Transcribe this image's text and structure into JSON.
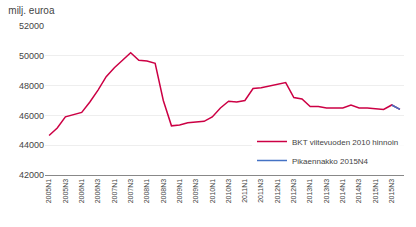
{
  "chart_data": {
    "type": "line",
    "title": "milj. euroa",
    "categories": [
      "2005N1",
      null,
      "2005N3",
      null,
      "2006N1",
      null,
      "2006N3",
      null,
      "2007N1",
      null,
      "2007N3",
      null,
      "2008N1",
      null,
      "2008N3",
      null,
      "2009N1",
      null,
      "2009N3",
      null,
      "2010N1",
      null,
      "2010N3",
      null,
      "2011N1",
      null,
      "2011N3",
      null,
      "2012N1",
      null,
      "2012N3",
      null,
      "2013N1",
      null,
      "2013N3",
      null,
      "2014N1",
      null,
      "2014N3",
      null,
      "2015N1",
      null,
      "2015N3",
      null
    ],
    "series": [
      {
        "name": "BKT viitevuoden 2010 hinnoin",
        "color": "#cc0044",
        "values": [
          44650,
          45150,
          45900,
          46050,
          46200,
          46900,
          47700,
          48600,
          49200,
          49700,
          50200,
          49700,
          49650,
          49500,
          47000,
          45300,
          45350,
          45500,
          45550,
          45600,
          45900,
          46500,
          46950,
          46900,
          47000,
          47800,
          47850,
          47950,
          48100,
          48200,
          47200,
          47100,
          46600,
          46600,
          46500,
          46500,
          46500,
          46700,
          46500,
          46500,
          46450,
          46400,
          46700,
          46400
        ]
      },
      {
        "name": "Pikaennakko 2015N4",
        "color": "#4472c4",
        "values": [
          null,
          null,
          null,
          null,
          null,
          null,
          null,
          null,
          null,
          null,
          null,
          null,
          null,
          null,
          null,
          null,
          null,
          null,
          null,
          null,
          null,
          null,
          null,
          null,
          null,
          null,
          null,
          null,
          null,
          null,
          null,
          null,
          null,
          null,
          null,
          null,
          null,
          null,
          null,
          null,
          null,
          null,
          46700,
          46400
        ]
      }
    ],
    "ylim": [
      42000,
      52000
    ],
    "yticks": [
      42000,
      44000,
      46000,
      48000,
      50000,
      52000
    ],
    "grid": true,
    "legend": "lower right"
  }
}
